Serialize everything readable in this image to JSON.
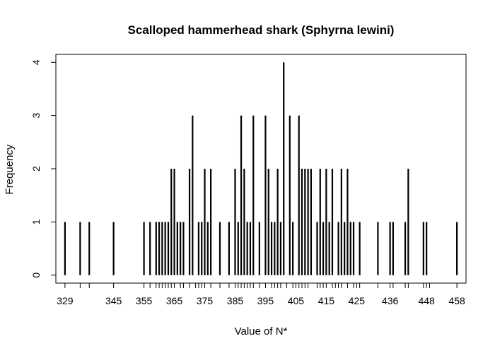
{
  "chart_data": {
    "type": "bar",
    "title": "Scalloped hammerhead shark (Sphyrna lewini)",
    "xlabel": "Value of N*",
    "ylabel": "Frequency",
    "xlim": [
      326,
      461
    ],
    "ylim": [
      -0.15,
      4.15
    ],
    "x_ticks": [
      329,
      345,
      355,
      365,
      375,
      385,
      395,
      405,
      415,
      425,
      436,
      448,
      458
    ],
    "x_minor_ticks": [
      334,
      337,
      357,
      359,
      360,
      361,
      362,
      363,
      364,
      367,
      368,
      370,
      372,
      373,
      374,
      377,
      380,
      383,
      386,
      387,
      388,
      389,
      390,
      391,
      393,
      397,
      398,
      399,
      400,
      402,
      404,
      406,
      407,
      408,
      409,
      412,
      413,
      414,
      417,
      418,
      419,
      420,
      422,
      424,
      426,
      432,
      437,
      441,
      442,
      447,
      449
    ],
    "y_ticks": [
      0,
      1,
      2,
      3,
      4
    ],
    "grid": false,
    "legend": "none",
    "points": [
      {
        "x": 329,
        "y": 1
      },
      {
        "x": 334,
        "y": 1
      },
      {
        "x": 337,
        "y": 1
      },
      {
        "x": 345,
        "y": 1
      },
      {
        "x": 355,
        "y": 1
      },
      {
        "x": 357,
        "y": 1
      },
      {
        "x": 359,
        "y": 1
      },
      {
        "x": 360,
        "y": 1
      },
      {
        "x": 361,
        "y": 1
      },
      {
        "x": 362,
        "y": 1
      },
      {
        "x": 363,
        "y": 1
      },
      {
        "x": 364,
        "y": 2
      },
      {
        "x": 365,
        "y": 2
      },
      {
        "x": 366,
        "y": 1
      },
      {
        "x": 367,
        "y": 1
      },
      {
        "x": 368,
        "y": 1
      },
      {
        "x": 370,
        "y": 2
      },
      {
        "x": 371,
        "y": 3
      },
      {
        "x": 373,
        "y": 1
      },
      {
        "x": 374,
        "y": 1
      },
      {
        "x": 375,
        "y": 2
      },
      {
        "x": 376,
        "y": 1
      },
      {
        "x": 377,
        "y": 2
      },
      {
        "x": 380,
        "y": 1
      },
      {
        "x": 383,
        "y": 1
      },
      {
        "x": 385,
        "y": 2
      },
      {
        "x": 386,
        "y": 1
      },
      {
        "x": 387,
        "y": 3
      },
      {
        "x": 388,
        "y": 2
      },
      {
        "x": 389,
        "y": 1
      },
      {
        "x": 390,
        "y": 1
      },
      {
        "x": 391,
        "y": 3
      },
      {
        "x": 393,
        "y": 1
      },
      {
        "x": 395,
        "y": 3
      },
      {
        "x": 396,
        "y": 2
      },
      {
        "x": 397,
        "y": 1
      },
      {
        "x": 398,
        "y": 1
      },
      {
        "x": 399,
        "y": 2
      },
      {
        "x": 400,
        "y": 1
      },
      {
        "x": 401,
        "y": 4
      },
      {
        "x": 403,
        "y": 3
      },
      {
        "x": 404,
        "y": 1
      },
      {
        "x": 406,
        "y": 3
      },
      {
        "x": 407,
        "y": 2
      },
      {
        "x": 408,
        "y": 2
      },
      {
        "x": 409,
        "y": 2
      },
      {
        "x": 410,
        "y": 2
      },
      {
        "x": 412,
        "y": 1
      },
      {
        "x": 413,
        "y": 2
      },
      {
        "x": 414,
        "y": 1
      },
      {
        "x": 415,
        "y": 2
      },
      {
        "x": 416,
        "y": 1
      },
      {
        "x": 417,
        "y": 2
      },
      {
        "x": 419,
        "y": 1
      },
      {
        "x": 420,
        "y": 2
      },
      {
        "x": 421,
        "y": 1
      },
      {
        "x": 422,
        "y": 2
      },
      {
        "x": 423,
        "y": 1
      },
      {
        "x": 424,
        "y": 1
      },
      {
        "x": 426,
        "y": 1
      },
      {
        "x": 432,
        "y": 1
      },
      {
        "x": 436,
        "y": 1
      },
      {
        "x": 437,
        "y": 1
      },
      {
        "x": 441,
        "y": 1
      },
      {
        "x": 442,
        "y": 2
      },
      {
        "x": 447,
        "y": 1
      },
      {
        "x": 448,
        "y": 1
      },
      {
        "x": 458,
        "y": 1
      }
    ]
  }
}
